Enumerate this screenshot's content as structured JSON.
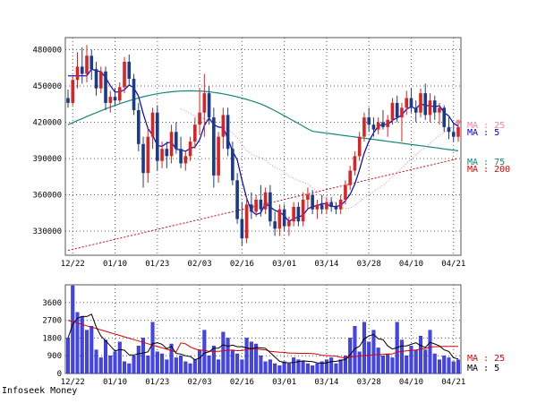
{
  "footer": "Infoseek Money",
  "chart_data": [
    {
      "type": "candlestick",
      "name": "price",
      "ylim": [
        310000,
        490000
      ],
      "yticks": [
        "480000",
        "450000",
        "420000",
        "390000",
        "360000",
        "330000"
      ],
      "ytick_values": [
        480000,
        450000,
        420000,
        390000,
        360000,
        330000
      ],
      "xticks": [
        "12/22",
        "01/10",
        "01/23",
        "02/03",
        "02/16",
        "03/01",
        "03/14",
        "03/28",
        "04/10",
        "04/21"
      ],
      "xtick_index": [
        1,
        10,
        19,
        28,
        37,
        46,
        55,
        64,
        73,
        82
      ],
      "legend": [
        {
          "label": "MA : 25",
          "color": "#ff7f9f"
        },
        {
          "label": "MA : 5",
          "color": "#0000cc"
        },
        {
          "label": "MA : 75",
          "color": "#118877"
        },
        {
          "label": "MA : 200",
          "color": "#dd0000"
        }
      ],
      "colors": {
        "up": "#dd2222",
        "down": "#1a3a8a",
        "ma5": "#0000cc",
        "ma25": "#ff7f9f",
        "ma75": "#118877",
        "ma200": "#dd0000"
      },
      "ohlc": [
        [
          440000,
          447000,
          432000,
          436000
        ],
        [
          436000,
          458000,
          434000,
          455000
        ],
        [
          455000,
          478000,
          448000,
          466000
        ],
        [
          466000,
          482000,
          452000,
          460000
        ],
        [
          460000,
          484000,
          453000,
          475000
        ],
        [
          475000,
          480000,
          455000,
          464000
        ],
        [
          464000,
          470000,
          442000,
          448000
        ],
        [
          448000,
          466000,
          444000,
          462000
        ],
        [
          462000,
          466000,
          430000,
          436000
        ],
        [
          436000,
          446000,
          428000,
          441000
        ],
        [
          441000,
          448000,
          434000,
          438000
        ],
        [
          438000,
          453000,
          436000,
          449000
        ],
        [
          449000,
          474000,
          444000,
          470000
        ],
        [
          470000,
          476000,
          450000,
          456000
        ],
        [
          456000,
          460000,
          426000,
          430000
        ],
        [
          430000,
          436000,
          396000,
          402000
        ],
        [
          402000,
          408000,
          366000,
          378000
        ],
        [
          378000,
          416000,
          370000,
          408000
        ],
        [
          408000,
          432000,
          398000,
          428000
        ],
        [
          428000,
          434000,
          380000,
          388000
        ],
        [
          388000,
          404000,
          382000,
          398000
        ],
        [
          398000,
          404000,
          382000,
          392000
        ],
        [
          392000,
          418000,
          386000,
          412000
        ],
        [
          412000,
          420000,
          394000,
          398000
        ],
        [
          398000,
          408000,
          382000,
          386000
        ],
        [
          386000,
          396000,
          380000,
          392000
        ],
        [
          392000,
          408000,
          388000,
          404000
        ],
        [
          404000,
          424000,
          398000,
          418000
        ],
        [
          418000,
          448000,
          410000,
          428000
        ],
        [
          428000,
          460000,
          408000,
          444000
        ],
        [
          444000,
          450000,
          418000,
          424000
        ],
        [
          424000,
          432000,
          366000,
          376000
        ],
        [
          376000,
          412000,
          370000,
          408000
        ],
        [
          408000,
          432000,
          398000,
          426000
        ],
        [
          426000,
          432000,
          392000,
          398000
        ],
        [
          398000,
          404000,
          368000,
          372000
        ],
        [
          372000,
          378000,
          336000,
          340000
        ],
        [
          340000,
          354000,
          318000,
          324000
        ],
        [
          324000,
          358000,
          320000,
          352000
        ],
        [
          352000,
          362000,
          340000,
          346000
        ],
        [
          346000,
          360000,
          342000,
          356000
        ],
        [
          356000,
          368000,
          342000,
          348000
        ],
        [
          348000,
          366000,
          344000,
          362000
        ],
        [
          362000,
          368000,
          334000,
          338000
        ],
        [
          338000,
          346000,
          326000,
          332000
        ],
        [
          332000,
          352000,
          326000,
          348000
        ],
        [
          348000,
          352000,
          330000,
          334000
        ],
        [
          334000,
          342000,
          326000,
          338000
        ],
        [
          338000,
          354000,
          334000,
          350000
        ],
        [
          350000,
          354000,
          334000,
          338000
        ],
        [
          338000,
          362000,
          334000,
          356000
        ],
        [
          356000,
          366000,
          348000,
          360000
        ],
        [
          360000,
          364000,
          344000,
          348000
        ],
        [
          348000,
          356000,
          340000,
          352000
        ],
        [
          352000,
          360000,
          344000,
          348000
        ],
        [
          348000,
          358000,
          344000,
          354000
        ],
        [
          354000,
          358000,
          346000,
          350000
        ],
        [
          350000,
          354000,
          344000,
          348000
        ],
        [
          348000,
          360000,
          344000,
          356000
        ],
        [
          356000,
          372000,
          352000,
          368000
        ],
        [
          368000,
          384000,
          364000,
          380000
        ],
        [
          380000,
          396000,
          376000,
          392000
        ],
        [
          392000,
          412000,
          388000,
          408000
        ],
        [
          408000,
          428000,
          404000,
          424000
        ],
        [
          424000,
          432000,
          412000,
          418000
        ],
        [
          418000,
          424000,
          408000,
          414000
        ],
        [
          414000,
          424000,
          410000,
          420000
        ],
        [
          420000,
          430000,
          414000,
          416000
        ],
        [
          416000,
          426000,
          408000,
          422000
        ],
        [
          422000,
          440000,
          418000,
          436000
        ],
        [
          436000,
          442000,
          420000,
          424000
        ],
        [
          424000,
          436000,
          404000,
          432000
        ],
        [
          432000,
          446000,
          426000,
          440000
        ],
        [
          440000,
          448000,
          428000,
          432000
        ],
        [
          432000,
          438000,
          420000,
          428000
        ],
        [
          428000,
          448000,
          424000,
          444000
        ],
        [
          444000,
          452000,
          422000,
          426000
        ],
        [
          426000,
          444000,
          420000,
          438000
        ],
        [
          438000,
          442000,
          422000,
          428000
        ],
        [
          428000,
          436000,
          418000,
          432000
        ],
        [
          432000,
          434000,
          412000,
          416000
        ],
        [
          416000,
          424000,
          406000,
          412000
        ],
        [
          412000,
          420000,
          404000,
          408000
        ],
        [
          408000,
          420000,
          404000,
          416000
        ]
      ]
    },
    {
      "type": "bar",
      "name": "volume",
      "ylim": [
        0,
        4500
      ],
      "yticks": [
        "3600",
        "2700",
        "1800",
        "900",
        "0"
      ],
      "ytick_values": [
        3600,
        2700,
        1800,
        900,
        0
      ],
      "xticks": [
        "12/22",
        "01/10",
        "01/23",
        "02/03",
        "02/16",
        "03/01",
        "03/14",
        "03/28",
        "04/10",
        "04/21"
      ],
      "legend": [
        {
          "label": "MA : 25",
          "color": "#dd0000"
        },
        {
          "label": "MA : 5",
          "color": "#000000"
        }
      ],
      "bar_color": "#4444ee",
      "ma_colors": {
        "ma5": "#000000",
        "ma25": "#dd0000"
      },
      "values": [
        1800,
        4450,
        3100,
        2900,
        2200,
        2400,
        1200,
        800,
        1700,
        900,
        1100,
        1600,
        600,
        500,
        900,
        1400,
        1800,
        900,
        2600,
        1100,
        1000,
        700,
        1500,
        800,
        900,
        600,
        500,
        700,
        1200,
        2200,
        900,
        1400,
        700,
        2100,
        1800,
        1200,
        1000,
        700,
        1800,
        1600,
        1500,
        900,
        600,
        700,
        500,
        400,
        600,
        500,
        800,
        700,
        600,
        500,
        400,
        500,
        600,
        700,
        800,
        500,
        700,
        900,
        1800,
        2400,
        1100,
        2600,
        1600,
        2200,
        1300,
        900,
        1000,
        800,
        2600,
        1700,
        900,
        1400,
        1200,
        1900,
        1200,
        2200,
        1000,
        700,
        900,
        800,
        600,
        700
      ]
    }
  ]
}
